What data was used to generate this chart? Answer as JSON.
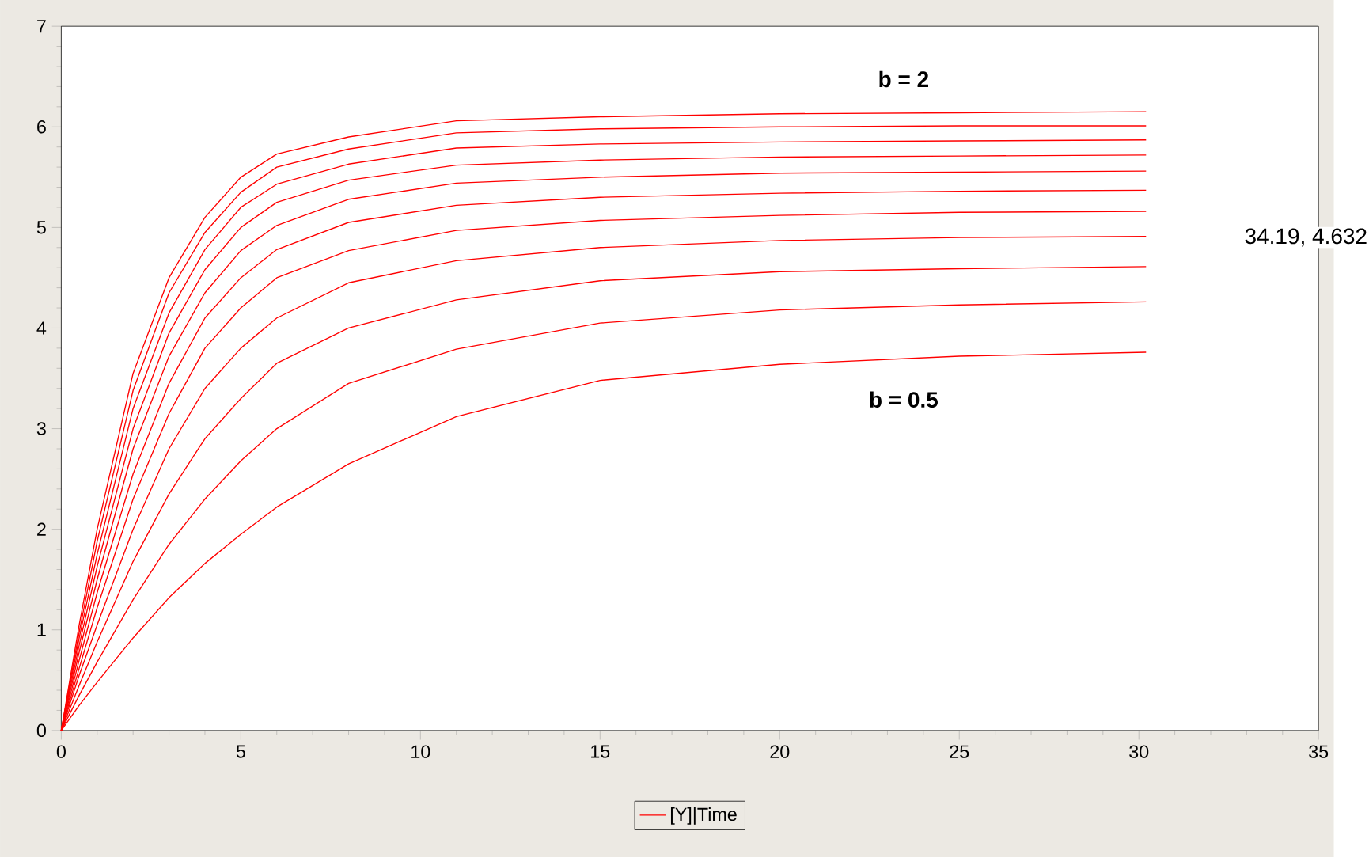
{
  "chart_data": {
    "type": "line",
    "legend": "bottom",
    "xlim": [
      0,
      35
    ],
    "ylim": [
      0,
      7
    ],
    "xticks": [
      0,
      5,
      10,
      15,
      20,
      25,
      30,
      35
    ],
    "yticks": [
      0,
      1,
      2,
      3,
      4,
      5,
      6,
      7
    ],
    "x": [
      0,
      0.5,
      1,
      2,
      3,
      4,
      5,
      6,
      8,
      11,
      15,
      20,
      25,
      30.2
    ],
    "annotations": [
      "**b = 2**",
      "**b = 0.5**",
      "34.19, 4.632"
    ],
    "series": [
      {
        "name": "[Y]|Time",
        "color": "#ff0000",
        "values": [
          0,
          0.25,
          0.48,
          0.92,
          1.32,
          1.66,
          1.95,
          2.22,
          2.65,
          3.12,
          3.48,
          3.64,
          3.72,
          3.76
        ]
      },
      {
        "color": "#ff0000",
        "values": [
          0,
          0.35,
          0.68,
          1.3,
          1.85,
          2.3,
          2.68,
          3.0,
          3.45,
          3.79,
          4.05,
          4.18,
          4.23,
          4.26
        ]
      },
      {
        "color": "#ff0000",
        "values": [
          0,
          0.45,
          0.88,
          1.68,
          2.35,
          2.9,
          3.3,
          3.65,
          4.0,
          4.28,
          4.47,
          4.56,
          4.59,
          4.61
        ]
      },
      {
        "color": "#ff0000",
        "values": [
          0,
          0.55,
          1.05,
          2.0,
          2.8,
          3.4,
          3.8,
          4.1,
          4.45,
          4.67,
          4.8,
          4.87,
          4.9,
          4.91
        ]
      },
      {
        "color": "#ff0000",
        "values": [
          0,
          0.62,
          1.22,
          2.3,
          3.15,
          3.8,
          4.2,
          4.5,
          4.77,
          4.97,
          5.07,
          5.12,
          5.15,
          5.16
        ]
      },
      {
        "color": "#ff0000",
        "values": [
          0,
          0.7,
          1.37,
          2.55,
          3.45,
          4.1,
          4.5,
          4.78,
          5.05,
          5.22,
          5.3,
          5.34,
          5.36,
          5.37
        ]
      },
      {
        "color": "#ff0000",
        "values": [
          0,
          0.78,
          1.5,
          2.8,
          3.72,
          4.35,
          4.77,
          5.02,
          5.28,
          5.44,
          5.5,
          5.54,
          5.55,
          5.56
        ]
      },
      {
        "color": "#ff0000",
        "values": [
          0,
          0.85,
          1.63,
          3.0,
          3.95,
          4.58,
          5.0,
          5.25,
          5.47,
          5.62,
          5.67,
          5.7,
          5.71,
          5.72
        ]
      },
      {
        "color": "#ff0000",
        "values": [
          0,
          0.92,
          1.75,
          3.2,
          4.15,
          4.78,
          5.2,
          5.43,
          5.63,
          5.79,
          5.83,
          5.85,
          5.86,
          5.87
        ]
      },
      {
        "color": "#ff0000",
        "values": [
          0,
          0.98,
          1.88,
          3.38,
          4.35,
          4.95,
          5.35,
          5.6,
          5.78,
          5.94,
          5.98,
          6.0,
          6.01,
          6.01
        ]
      },
      {
        "color": "#ff0000",
        "values": [
          0,
          1.05,
          2.0,
          3.55,
          4.5,
          5.1,
          5.5,
          5.73,
          5.9,
          6.06,
          6.1,
          6.13,
          6.14,
          6.15
        ]
      }
    ]
  }
}
